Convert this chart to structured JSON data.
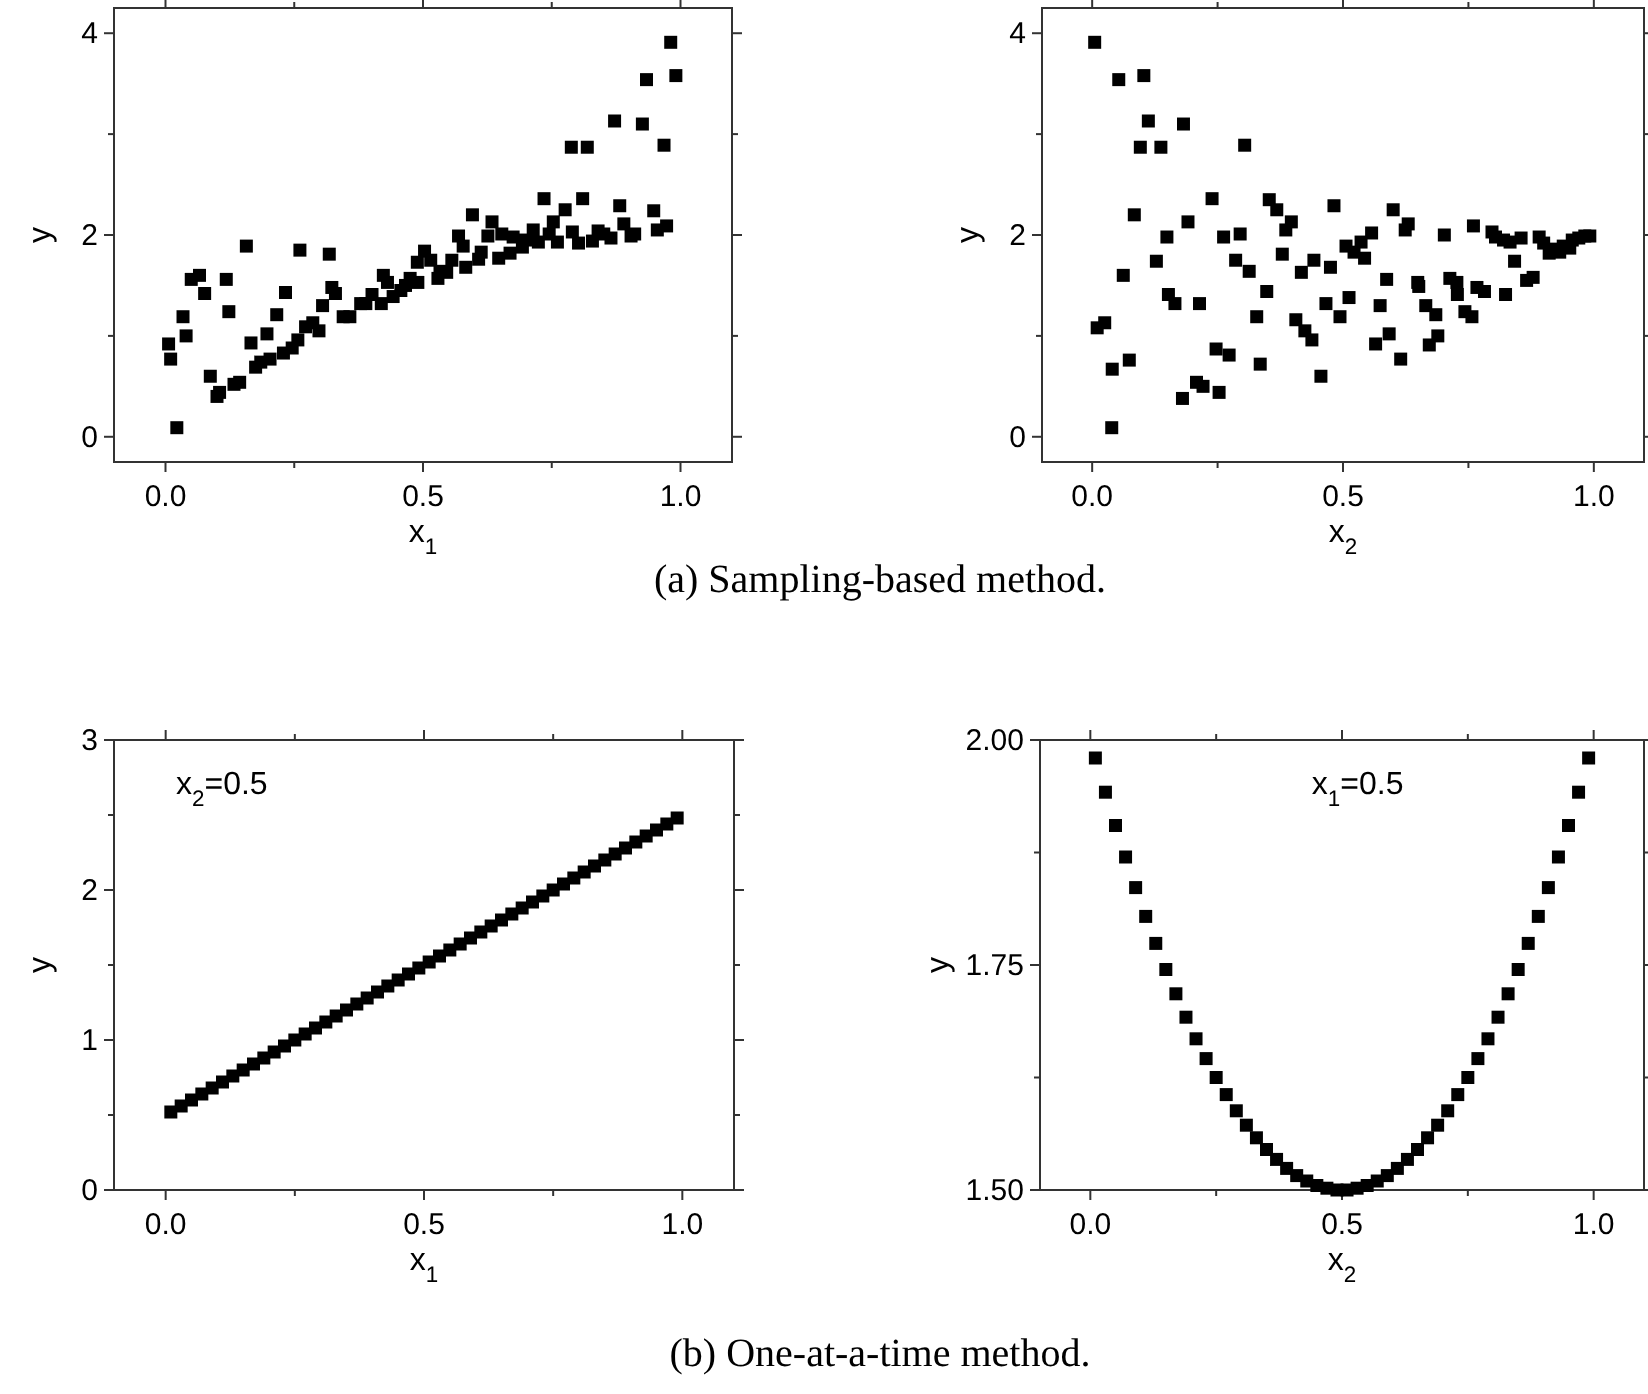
{
  "chart_data": [
    {
      "type": "scatter",
      "title": "(a) Sampling-based method.",
      "xlabel": "x$_{1}$",
      "ylabel": "y",
      "marker": "square",
      "grid": false,
      "xlim": [
        -0.1,
        1.1
      ],
      "xticks": [
        {
          "value": 0,
          "label": "0.0"
        },
        {
          "value": 0.25,
          "label": null
        },
        {
          "value": 0.5,
          "label": "0.5"
        },
        {
          "value": 0.75,
          "label": null
        },
        {
          "value": 1,
          "label": "1.0"
        }
      ],
      "ylim": [
        -0.25,
        4.25
      ],
      "yticks": [
        0,
        {
          "value": 1,
          "label": null
        },
        2,
        {
          "value": 3,
          "label": null
        },
        4
      ],
      "series": [
        {
          "color": "#000000",
          "x": [
            0.006,
            0.01,
            0.022,
            0.034,
            0.04,
            0.05,
            0.066,
            0.076,
            0.087,
            0.1,
            0.105,
            0.118,
            0.123,
            0.133,
            0.144,
            0.157,
            0.166,
            0.175,
            0.185,
            0.197,
            0.203,
            0.216,
            0.229,
            0.233,
            0.246,
            0.257,
            0.261,
            0.272,
            0.286,
            0.298,
            0.305,
            0.318,
            0.323,
            0.33,
            0.345,
            0.358,
            0.379,
            0.389,
            0.401,
            0.419,
            0.423,
            0.431,
            0.442,
            0.457,
            0.466,
            0.475,
            0.49,
            0.489,
            0.503,
            0.515,
            0.529,
            0.533,
            0.546,
            0.556,
            0.569,
            0.578,
            0.583,
            0.596,
            0.608,
            0.613,
            0.626,
            0.634,
            0.647,
            0.653,
            0.669,
            0.675,
            0.693,
            0.699,
            0.714,
            0.724,
            0.735,
            0.745,
            0.753,
            0.761,
            0.776,
            0.788,
            0.79,
            0.802,
            0.81,
            0.819,
            0.829,
            0.84,
            0.851,
            0.865,
            0.872,
            0.882,
            0.89,
            0.904,
            0.911,
            0.926,
            0.934,
            0.948,
            0.955,
            0.968,
            0.973,
            0.981,
            0.991
          ],
          "values": [
            0.92,
            0.77,
            0.09,
            1.19,
            1.0,
            1.56,
            1.6,
            1.42,
            0.6,
            0.4,
            0.44,
            1.56,
            1.24,
            0.52,
            0.54,
            1.89,
            0.93,
            0.69,
            0.74,
            1.02,
            0.77,
            1.21,
            0.83,
            1.43,
            0.88,
            0.96,
            1.85,
            1.09,
            1.13,
            1.05,
            1.3,
            1.81,
            1.48,
            1.42,
            1.19,
            1.19,
            1.32,
            1.32,
            1.41,
            1.32,
            1.6,
            1.53,
            1.39,
            1.45,
            1.5,
            1.57,
            1.53,
            1.73,
            1.84,
            1.75,
            1.57,
            1.64,
            1.63,
            1.75,
            1.99,
            1.89,
            1.68,
            2.2,
            1.76,
            1.83,
            1.99,
            2.13,
            1.77,
            2.01,
            1.82,
            1.98,
            1.88,
            1.95,
            2.05,
            1.93,
            2.36,
            2.01,
            2.13,
            1.93,
            2.25,
            2.87,
            2.03,
            1.92,
            2.36,
            2.87,
            1.94,
            2.04,
            2.01,
            1.97,
            3.13,
            2.29,
            2.11,
            1.99,
            2.01,
            3.1,
            3.54,
            2.24,
            2.05,
            2.89,
            2.09,
            3.91,
            3.58
          ]
        }
      ]
    },
    {
      "type": "scatter",
      "xlabel": "x$_{2}$",
      "ylabel": "y",
      "marker": "square",
      "grid": false,
      "xlim": [
        -0.1,
        1.1
      ],
      "xticks": [
        {
          "value": 0,
          "label": "0.0"
        },
        {
          "value": 0.25,
          "label": null
        },
        {
          "value": 0.5,
          "label": "0.5"
        },
        {
          "value": 0.75,
          "label": null
        },
        {
          "value": 1,
          "label": "1.0"
        }
      ],
      "ylim": [
        -0.25,
        4.25
      ],
      "yticks": [
        0,
        {
          "value": 1,
          "label": null
        },
        2,
        {
          "value": 3,
          "label": null
        },
        4
      ],
      "series": [
        {
          "color": "#000000",
          "x": [
            0.005,
            0.01,
            0.025,
            0.039,
            0.04,
            0.053,
            0.062,
            0.074,
            0.084,
            0.096,
            0.103,
            0.112,
            0.128,
            0.137,
            0.149,
            0.152,
            0.165,
            0.18,
            0.182,
            0.191,
            0.208,
            0.214,
            0.221,
            0.239,
            0.247,
            0.253,
            0.262,
            0.273,
            0.286,
            0.295,
            0.304,
            0.313,
            0.328,
            0.335,
            0.348,
            0.353,
            0.368,
            0.379,
            0.386,
            0.397,
            0.406,
            0.417,
            0.424,
            0.438,
            0.442,
            0.456,
            0.466,
            0.475,
            0.482,
            0.494,
            0.506,
            0.512,
            0.522,
            0.536,
            0.543,
            0.557,
            0.565,
            0.574,
            0.587,
            0.592,
            0.6,
            0.615,
            0.624,
            0.63,
            0.649,
            0.651,
            0.665,
            0.672,
            0.685,
            0.689,
            0.702,
            0.713,
            0.727,
            0.728,
            0.743,
            0.757,
            0.76,
            0.767,
            0.782,
            0.797,
            0.804,
            0.82,
            0.824,
            0.833,
            0.842,
            0.855,
            0.866,
            0.879,
            0.891,
            0.9,
            0.911,
            0.921,
            0.932,
            0.939,
            0.952,
            0.957,
            0.97,
            0.982,
            0.992
          ],
          "values": [
            3.91,
            1.08,
            1.13,
            0.09,
            0.67,
            3.54,
            1.6,
            0.76,
            2.2,
            2.87,
            3.58,
            3.13,
            1.74,
            2.87,
            1.98,
            1.41,
            1.32,
            0.38,
            3.1,
            2.13,
            0.54,
            1.32,
            0.5,
            2.36,
            0.87,
            0.44,
            1.98,
            0.81,
            1.75,
            2.01,
            2.89,
            1.64,
            1.19,
            0.72,
            1.44,
            2.35,
            2.25,
            1.81,
            2.05,
            2.13,
            1.16,
            1.63,
            1.05,
            0.96,
            1.75,
            0.6,
            1.32,
            1.68,
            2.29,
            1.19,
            1.89,
            1.38,
            1.83,
            1.93,
            1.77,
            2.02,
            0.92,
            1.3,
            1.56,
            1.02,
            2.25,
            0.77,
            2.05,
            2.11,
            1.53,
            1.49,
            1.3,
            0.91,
            1.21,
            1.0,
            2.0,
            1.57,
            1.53,
            1.41,
            1.24,
            1.19,
            2.09,
            1.48,
            1.44,
            2.03,
            1.98,
            1.95,
            1.41,
            1.93,
            1.74,
            1.97,
            1.55,
            1.58,
            1.98,
            1.92,
            1.82,
            1.86,
            1.83,
            1.89,
            1.87,
            1.95,
            1.97,
            1.99,
            1.99
          ]
        }
      ]
    },
    {
      "type": "scatter",
      "title": "(b) One-at-a-time method.",
      "xlabel": "x$_{1}$",
      "ylabel": "y",
      "marker": "square",
      "grid": false,
      "annotations": [
        "x$_{2}$=0.5"
      ],
      "xlim": [
        -0.1,
        1.1
      ],
      "xticks": [
        {
          "value": 0,
          "label": "0.0"
        },
        {
          "value": 0.25,
          "label": null
        },
        {
          "value": 0.5,
          "label": "0.5"
        },
        {
          "value": 0.75,
          "label": null
        },
        {
          "value": 1,
          "label": "1.0"
        }
      ],
      "ylim": [
        0,
        3
      ],
      "yticks": [
        0,
        {
          "value": 0.5,
          "label": null
        },
        1,
        {
          "value": 1.5,
          "label": null
        },
        2,
        {
          "value": 2.5,
          "label": null
        },
        3
      ],
      "series": [
        {
          "color": "#000000",
          "x": [
            0.01,
            0.03,
            0.05,
            0.07,
            0.09,
            0.11,
            0.13,
            0.15,
            0.17,
            0.19,
            0.21,
            0.23,
            0.25,
            0.27,
            0.29,
            0.31,
            0.33,
            0.35,
            0.37,
            0.39,
            0.41,
            0.43,
            0.45,
            0.47,
            0.49,
            0.51,
            0.53,
            0.55,
            0.57,
            0.59,
            0.61,
            0.63,
            0.65,
            0.67,
            0.69,
            0.71,
            0.73,
            0.75,
            0.77,
            0.79,
            0.81,
            0.83,
            0.85,
            0.87,
            0.89,
            0.91,
            0.93,
            0.95,
            0.97,
            0.99
          ],
          "values": [
            0.52,
            0.56,
            0.6,
            0.64,
            0.68,
            0.72,
            0.76,
            0.8,
            0.84,
            0.88,
            0.92,
            0.96,
            1.0,
            1.04,
            1.08,
            1.12,
            1.16,
            1.2,
            1.24,
            1.28,
            1.32,
            1.36,
            1.4,
            1.44,
            1.48,
            1.52,
            1.56,
            1.6,
            1.64,
            1.68,
            1.72,
            1.76,
            1.8,
            1.84,
            1.88,
            1.92,
            1.96,
            2.0,
            2.04,
            2.08,
            2.12,
            2.16,
            2.2,
            2.24,
            2.28,
            2.32,
            2.36,
            2.4,
            2.44,
            2.48
          ]
        }
      ]
    },
    {
      "type": "scatter",
      "xlabel": "x$_{2}$",
      "ylabel": "y",
      "marker": "square",
      "grid": false,
      "annotations": [
        "x$_{1}$=0.5"
      ],
      "xlim": [
        -0.1,
        1.1
      ],
      "xticks": [
        {
          "value": 0,
          "label": "0.0"
        },
        {
          "value": 0.25,
          "label": null
        },
        {
          "value": 0.5,
          "label": "0.5"
        },
        {
          "value": 0.75,
          "label": null
        },
        {
          "value": 1,
          "label": "1.0"
        }
      ],
      "ylim": [
        1.5,
        2.0
      ],
      "yticks": [
        {
          "value": 1.5,
          "label": "1.50"
        },
        {
          "value": 1.625,
          "label": null
        },
        {
          "value": 1.75,
          "label": "1.75"
        },
        {
          "value": 1.875,
          "label": null
        },
        {
          "value": 2,
          "label": "2.00"
        }
      ],
      "series": [
        {
          "color": "#000000",
          "x": [
            0.01,
            0.03,
            0.05,
            0.07,
            0.09,
            0.11,
            0.13,
            0.15,
            0.17,
            0.19,
            0.21,
            0.23,
            0.25,
            0.27,
            0.29,
            0.31,
            0.33,
            0.35,
            0.37,
            0.39,
            0.41,
            0.43,
            0.45,
            0.47,
            0.49,
            0.51,
            0.53,
            0.55,
            0.57,
            0.59,
            0.61,
            0.63,
            0.65,
            0.67,
            0.69,
            0.71,
            0.73,
            0.75,
            0.77,
            0.79,
            0.81,
            0.83,
            0.85,
            0.87,
            0.89,
            0.91,
            0.93,
            0.95,
            0.97,
            0.99
          ],
          "values": [
            1.98,
            1.942,
            1.905,
            1.87,
            1.836,
            1.804,
            1.774,
            1.745,
            1.718,
            1.692,
            1.668,
            1.646,
            1.625,
            1.606,
            1.588,
            1.572,
            1.558,
            1.545,
            1.534,
            1.524,
            1.516,
            1.51,
            1.505,
            1.502,
            1.5,
            1.5,
            1.502,
            1.505,
            1.51,
            1.516,
            1.524,
            1.534,
            1.545,
            1.558,
            1.572,
            1.588,
            1.606,
            1.625,
            1.646,
            1.668,
            1.692,
            1.718,
            1.745,
            1.774,
            1.804,
            1.836,
            1.87,
            1.905,
            1.942,
            1.98
          ]
        }
      ]
    }
  ]
}
